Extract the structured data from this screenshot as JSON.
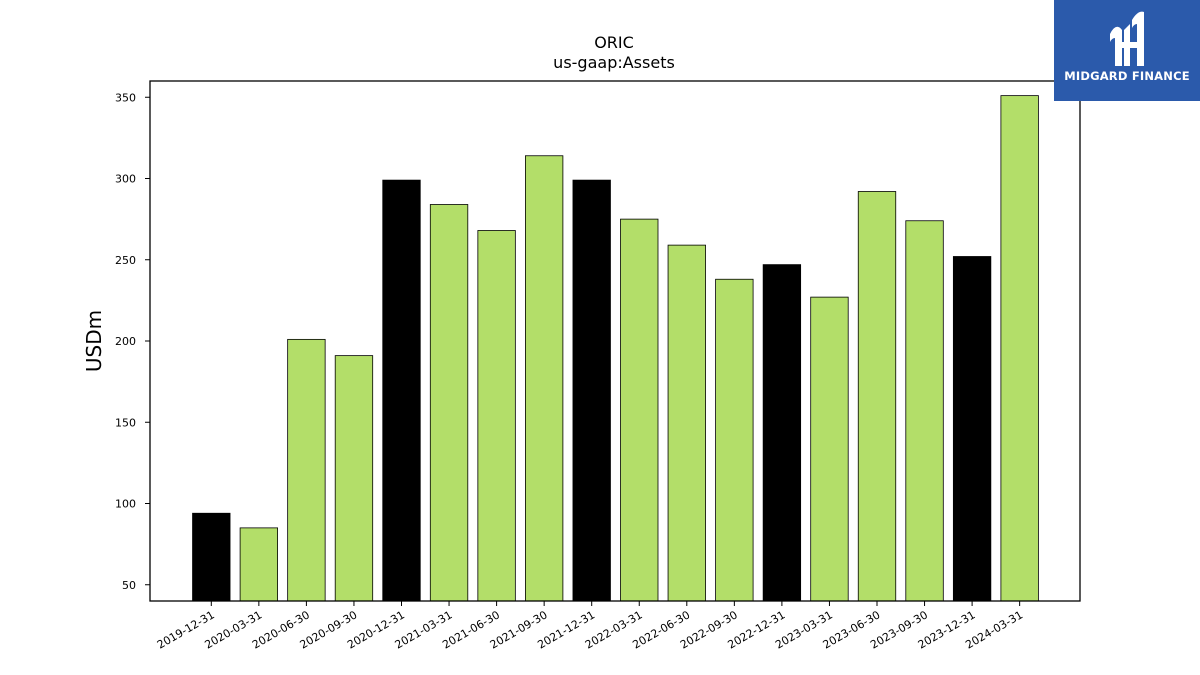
{
  "logo": {
    "text": "MIDGARD FINANCE",
    "icon": "midgard-logo-icon"
  },
  "chart_data": {
    "type": "bar",
    "title": "ORIC",
    "subtitle": "us-gaap:Assets",
    "xlabel": "",
    "ylabel": "USDm",
    "ylim": [
      40,
      360
    ],
    "yticks": [
      50,
      100,
      150,
      200,
      250,
      300,
      350
    ],
    "grid": false,
    "categories": [
      "2019-12-31",
      "2020-03-31",
      "2020-06-30",
      "2020-09-30",
      "2020-12-31",
      "2021-03-31",
      "2021-06-30",
      "2021-09-30",
      "2021-12-31",
      "2022-03-31",
      "2022-06-30",
      "2022-09-30",
      "2022-12-31",
      "2023-03-31",
      "2023-06-30",
      "2023-09-30",
      "2023-12-31",
      "2024-03-31"
    ],
    "values": [
      94,
      85,
      201,
      191,
      299,
      284,
      268,
      314,
      299,
      275,
      259,
      238,
      247,
      227,
      292,
      274,
      252,
      351
    ],
    "colors": [
      "#000000",
      "#b3de69",
      "#b3de69",
      "#b3de69",
      "#000000",
      "#b3de69",
      "#b3de69",
      "#b3de69",
      "#000000",
      "#b3de69",
      "#b3de69",
      "#b3de69",
      "#000000",
      "#b3de69",
      "#b3de69",
      "#b3de69",
      "#000000",
      "#b3de69"
    ]
  }
}
